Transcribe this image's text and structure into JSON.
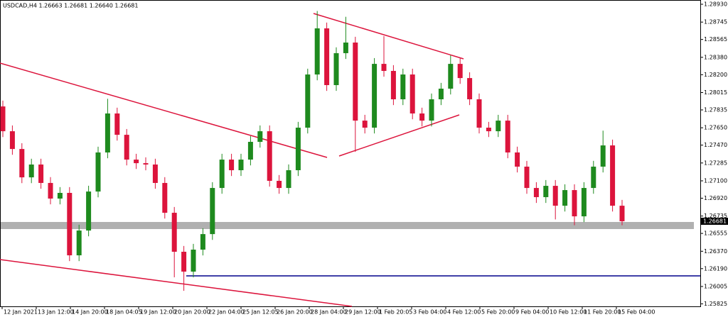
{
  "chart_data": {
    "type": "candlestick",
    "title": "USDCAD,H4  1.26663 1.26681 1.26640 1.26681",
    "up_color": "#1e8a1e",
    "down_color": "#dc143c",
    "open": [
      1.27871,
      1.27614,
      1.2743,
      1.27136,
      1.27269,
      1.27078,
      1.26916,
      1.26975,
      1.26328,
      1.26585,
      1.26989,
      1.27394,
      1.27798,
      1.27577,
      1.2732,
      1.27283,
      1.27269,
      1.27078,
      1.26769,
      1.26365,
      1.26159,
      1.26387,
      1.26548,
      1.27026,
      1.2732,
      1.2721,
      1.2732,
      1.27504,
      1.27614,
      1.271,
      1.27026,
      1.2721,
      1.27651,
      1.28202,
      1.2868,
      1.28092,
      1.28423,
      1.28533,
      1.27724,
      1.27651,
      1.28312,
      1.28239,
      1.27945,
      1.28202,
      1.27798,
      1.27724,
      1.27945,
      1.28055,
      1.28312,
      1.28165,
      1.27945,
      1.27651,
      1.27614,
      1.27724,
      1.27394,
      1.27247,
      1.27026,
      1.26931,
      1.27048,
      1.26842,
      1.27004,
      1.26732,
      1.27026,
      1.27247,
      1.27467,
      1.26842
    ],
    "high": [
      1.27931,
      1.27674,
      1.2749,
      1.27329,
      1.27329,
      1.27138,
      1.27035,
      1.27035,
      1.26645,
      1.27049,
      1.27454,
      1.2795,
      1.27858,
      1.27637,
      1.2738,
      1.27343,
      1.27329,
      1.27138,
      1.26829,
      1.26425,
      1.26447,
      1.26608,
      1.27086,
      1.2738,
      1.2738,
      1.2738,
      1.27564,
      1.27674,
      1.27674,
      1.2716,
      1.2727,
      1.27711,
      1.28262,
      1.2886,
      1.2874,
      1.28483,
      1.288,
      1.28593,
      1.27784,
      1.28372,
      1.286,
      1.28299,
      1.28262,
      1.28262,
      1.27858,
      1.28005,
      1.28115,
      1.284,
      1.28372,
      1.28225,
      1.28005,
      1.27711,
      1.27784,
      1.27784,
      1.27454,
      1.27307,
      1.27086,
      1.27108,
      1.27108,
      1.27064,
      1.27064,
      1.27086,
      1.27307,
      1.2762,
      1.27527,
      1.26902
    ],
    "low": [
      1.27554,
      1.2737,
      1.27076,
      1.27076,
      1.27018,
      1.26856,
      1.26856,
      1.26268,
      1.26268,
      1.26525,
      1.26929,
      1.27334,
      1.27517,
      1.2726,
      1.27223,
      1.27209,
      1.27018,
      1.26709,
      1.261,
      1.2596,
      1.26099,
      1.26327,
      1.26488,
      1.26966,
      1.2715,
      1.2715,
      1.2726,
      1.27444,
      1.2704,
      1.26966,
      1.26966,
      1.2715,
      1.27591,
      1.28142,
      1.28032,
      1.28032,
      1.28363,
      1.274,
      1.27591,
      1.27591,
      1.28179,
      1.27885,
      1.27885,
      1.27738,
      1.27664,
      1.27664,
      1.27885,
      1.27995,
      1.28105,
      1.27885,
      1.27591,
      1.27554,
      1.27554,
      1.27334,
      1.27187,
      1.26966,
      1.26871,
      1.26871,
      1.267,
      1.26782,
      1.2664,
      1.26672,
      1.26966,
      1.27187,
      1.26782,
      1.2664
    ],
    "close": [
      1.27614,
      1.2743,
      1.27136,
      1.27269,
      1.27078,
      1.26916,
      1.26975,
      1.26328,
      1.26585,
      1.26989,
      1.27394,
      1.27798,
      1.27577,
      1.2732,
      1.27283,
      1.27269,
      1.27078,
      1.26769,
      1.26365,
      1.26159,
      1.26387,
      1.26548,
      1.27026,
      1.2732,
      1.2721,
      1.2732,
      1.27504,
      1.27614,
      1.271,
      1.27026,
      1.2721,
      1.27651,
      1.28202,
      1.2868,
      1.28092,
      1.28423,
      1.28533,
      1.27724,
      1.27651,
      1.28312,
      1.28239,
      1.27945,
      1.28202,
      1.27798,
      1.27724,
      1.27945,
      1.28055,
      1.28312,
      1.28165,
      1.27945,
      1.27651,
      1.27614,
      1.27724,
      1.27394,
      1.27247,
      1.27026,
      1.26931,
      1.27048,
      1.26842,
      1.27004,
      1.26732,
      1.27026,
      1.27247,
      1.27467,
      1.26842,
      1.26681
    ],
    "ylim": [
      1.25799,
      1.28974
    ],
    "yticks": [
      {
        "value": 1.2893,
        "label": "1.28930"
      },
      {
        "value": 1.28745,
        "label": "1.28745"
      },
      {
        "value": 1.28565,
        "label": "1.28565"
      },
      {
        "value": 1.2838,
        "label": "1.28380"
      },
      {
        "value": 1.282,
        "label": "1.28200"
      },
      {
        "value": 1.28015,
        "label": "1.28015"
      },
      {
        "value": 1.27835,
        "label": "1.27835"
      },
      {
        "value": 1.2765,
        "label": "1.27650"
      },
      {
        "value": 1.2747,
        "label": "1.27470"
      },
      {
        "value": 1.27285,
        "label": "1.27285"
      },
      {
        "value": 1.271,
        "label": "1.27100"
      },
      {
        "value": 1.2692,
        "label": "1.26920"
      },
      {
        "value": 1.26735,
        "label": "1.26735"
      },
      {
        "value": 1.26555,
        "label": "1.26555"
      },
      {
        "value": 1.2637,
        "label": "1.26370"
      },
      {
        "value": 1.2619,
        "label": "1.26190"
      },
      {
        "value": 1.26005,
        "label": "1.26005"
      },
      {
        "value": 1.25825,
        "label": "1.25825"
      }
    ],
    "current_price": 1.26681,
    "x_labels": [
      "12 Jan 2021",
      "13 Jan 12:00",
      "14 Jan 20:00",
      "18 Jan 04:05",
      "19 Jan 12:00",
      "20 Jan 20:00",
      "22 Jan 04:00",
      "25 Jan 12:05",
      "26 Jan 20:00",
      "28 Jan 04:00",
      "29 Jan 12:00",
      "1 Feb 20:05",
      "3 Feb 04:00",
      "4 Feb 12:00",
      "5 Feb 20:00",
      "9 Feb 04:00",
      "10 Feb 12:00",
      "11 Feb 20:00",
      "15 Feb 04:00"
    ]
  }
}
